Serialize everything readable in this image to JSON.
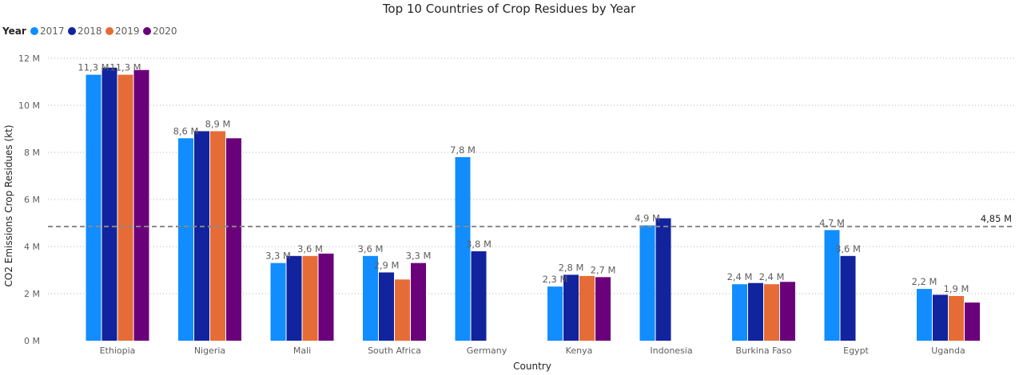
{
  "chart_data": {
    "type": "bar",
    "title": "Top 10 Countries of Crop Residues by Year",
    "xlabel": "Country",
    "ylabel": "CO2 Emissions Crop Residues (kt)",
    "legend_title": "Year",
    "legend_position": "top-left",
    "categories": [
      "Ethiopia",
      "Nigeria",
      "Mali",
      "South Africa",
      "Germany",
      "Kenya",
      "Indonesia",
      "Burkina Faso",
      "Egypt",
      "Uganda"
    ],
    "series": [
      {
        "name": "2017",
        "color": "#118DFF",
        "values": [
          11.3,
          8.6,
          3.3,
          3.6,
          7.8,
          2.3,
          4.9,
          2.4,
          4.7,
          2.2
        ]
      },
      {
        "name": "2018",
        "color": "#12239E",
        "values": [
          11.6,
          8.9,
          3.6,
          2.9,
          3.8,
          2.8,
          5.2,
          2.45,
          3.6,
          1.95
        ]
      },
      {
        "name": "2019",
        "color": "#E66C37",
        "values": [
          11.3,
          8.9,
          3.6,
          2.6,
          null,
          2.75,
          null,
          2.4,
          null,
          1.9
        ]
      },
      {
        "name": "2020",
        "color": "#6B007B",
        "values": [
          11.5,
          8.6,
          3.7,
          3.3,
          null,
          2.7,
          null,
          2.5,
          null,
          1.62
        ]
      }
    ],
    "data_labels": [
      {
        "category": "Ethiopia",
        "series": "2017",
        "text": "11,3 M"
      },
      {
        "category": "Ethiopia",
        "series": "2019",
        "text": "11,3 M"
      },
      {
        "category": "Nigeria",
        "series": "2017",
        "text": "8,6 M"
      },
      {
        "category": "Nigeria",
        "series": "2019",
        "text": "8,9 M"
      },
      {
        "category": "Mali",
        "series": "2017",
        "text": "3,3 M"
      },
      {
        "category": "Mali",
        "series": "2019",
        "text": "3,6 M"
      },
      {
        "category": "South Africa",
        "series": "2017",
        "text": "3,6 M"
      },
      {
        "category": "South Africa",
        "series": "2018",
        "text": "2,9 M"
      },
      {
        "category": "South Africa",
        "series": "2020",
        "text": "3,3 M"
      },
      {
        "category": "Germany",
        "series": "2017",
        "text": "7,8 M"
      },
      {
        "category": "Germany",
        "series": "2018",
        "text": "3,8 M"
      },
      {
        "category": "Kenya",
        "series": "2017",
        "text": "2,3 M"
      },
      {
        "category": "Kenya",
        "series": "2018",
        "text": "2,8 M"
      },
      {
        "category": "Kenya",
        "series": "2020",
        "text": "2,7 M"
      },
      {
        "category": "Indonesia",
        "series": "2017",
        "text": "4,9 M"
      },
      {
        "category": "Burkina Faso",
        "series": "2017",
        "text": "2,4 M"
      },
      {
        "category": "Burkina Faso",
        "series": "2019",
        "text": "2,4 M"
      },
      {
        "category": "Egypt",
        "series": "2017",
        "text": "4,7 M"
      },
      {
        "category": "Egypt",
        "series": "2018",
        "text": "3,6 M"
      },
      {
        "category": "Uganda",
        "series": "2017",
        "text": "2,2 M"
      },
      {
        "category": "Uganda",
        "series": "2019",
        "text": "1,9 M"
      }
    ],
    "ylim": [
      0,
      12
    ],
    "y_ticks": [
      {
        "value": 0,
        "label": "0 M"
      },
      {
        "value": 2,
        "label": "2 M"
      },
      {
        "value": 4,
        "label": "4 M"
      },
      {
        "value": 6,
        "label": "6 M"
      },
      {
        "value": 8,
        "label": "8 M"
      },
      {
        "value": 10,
        "label": "10 M"
      },
      {
        "value": 12,
        "label": "12 M"
      }
    ],
    "grid": true,
    "reference_line": {
      "value": 4.85,
      "label": "4,85 M",
      "color": "#888888"
    }
  }
}
